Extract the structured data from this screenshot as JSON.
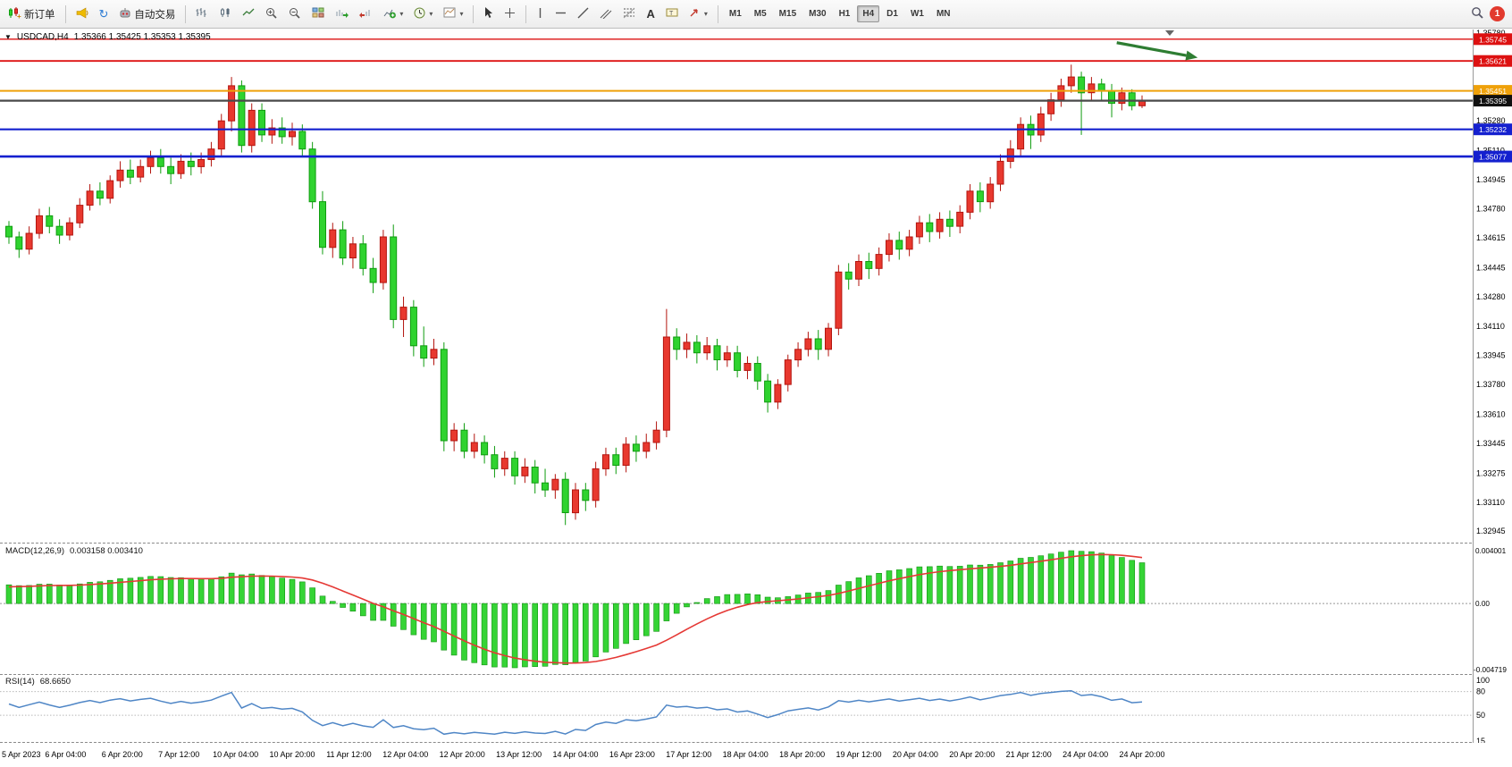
{
  "toolbar": {
    "new_order_label": "新订单",
    "auto_trading_label": "自动交易",
    "timeframes": [
      "M1",
      "M5",
      "M15",
      "M30",
      "H1",
      "H4",
      "D1",
      "W1",
      "MN"
    ],
    "active_timeframe": "H4",
    "notification_count": "1"
  },
  "chart": {
    "symbol_period": "USDCAD,H4",
    "ohlc": "1.35366 1.35425 1.35353 1.35395"
  },
  "macd": {
    "name": "MACD(12,26,9)",
    "values": "0.003158 0.003410",
    "axis": [
      "0.004001",
      "0.00",
      "-0.004719"
    ]
  },
  "rsi": {
    "name": "RSI(14)",
    "value": "68.6650",
    "axis_labels": [
      "100",
      "80",
      "50",
      "15"
    ],
    "axis_values": [
      100,
      80,
      50,
      15
    ],
    "levels": [
      80,
      50
    ]
  },
  "chart_data": {
    "type": "candlestick",
    "symbol": "USDCAD",
    "timeframe": "H4",
    "title": "USDCAD,H4 1.35366 1.35425 1.35353 1.35395",
    "colors": {
      "up": "#e8382e",
      "up_edge": "#b3150f",
      "down": "#2fd32f",
      "down_edge": "#0f9c0f",
      "macd_bar": "#35d435",
      "macd_bar_edge": "#129212",
      "macd_signal": "#e53935",
      "rsi_line": "#4f86c6"
    },
    "price_axis": {
      "min": 1.3288,
      "max": 1.358,
      "ticks": [
        "1.35780",
        "1.35610",
        "1.35445",
        "1.35280",
        "1.35110",
        "1.34945",
        "1.34780",
        "1.34615",
        "1.34445",
        "1.34280",
        "1.34110",
        "1.33945",
        "1.33780",
        "1.33610",
        "1.33445",
        "1.33275",
        "1.33110",
        "1.32945"
      ]
    },
    "hlines": [
      {
        "price": 1.35745,
        "label": "1.35745",
        "color": "#dd1111",
        "width": 1.4
      },
      {
        "price": 1.35621,
        "label": "1.35621",
        "color": "#dd1111",
        "width": 1.8
      },
      {
        "price": 1.35451,
        "label": "1.35451",
        "color": "#efa10a",
        "width": 2
      },
      {
        "price": 1.35395,
        "label": "1.35395",
        "color": "#4a4a4a",
        "width": 2.2,
        "badge": "#101010"
      },
      {
        "price": 1.35232,
        "label": "1.35232",
        "color": "#1420cf",
        "width": 2.2
      },
      {
        "price": 1.35077,
        "label": "1.35077",
        "color": "#1420cf",
        "width": 2.6
      }
    ],
    "arrow": {
      "bar1": 109.5,
      "price1": 1.35725,
      "bar2": 117.5,
      "price2": 1.3564,
      "color": "#2e7d32"
    },
    "time_axis": [
      "5 Apr 2023",
      "6 Apr 04:00",
      "6 Apr 20:00",
      "7 Apr 12:00",
      "10 Apr 04:00",
      "10 Apr 20:00",
      "11 Apr 12:00",
      "12 Apr 04:00",
      "12 Apr 20:00",
      "13 Apr 12:00",
      "14 Apr 04:00",
      "16 Apr 23:00",
      "17 Apr 12:00",
      "18 Apr 04:00",
      "18 Apr 20:00",
      "19 Apr 12:00",
      "20 Apr 04:00",
      "20 Apr 20:00",
      "21 Apr 12:00",
      "24 Apr 04:00",
      "24 Apr 20:00"
    ],
    "candles": [
      [
        1.3468,
        1.3471,
        1.3458,
        1.3462
      ],
      [
        1.3462,
        1.3465,
        1.345,
        1.3455
      ],
      [
        1.3455,
        1.3468,
        1.3452,
        1.3464
      ],
      [
        1.3464,
        1.3478,
        1.3461,
        1.3474
      ],
      [
        1.3474,
        1.3479,
        1.3464,
        1.3468
      ],
      [
        1.3468,
        1.3472,
        1.3458,
        1.3463
      ],
      [
        1.3463,
        1.3473,
        1.346,
        1.347
      ],
      [
        1.347,
        1.3484,
        1.3467,
        1.348
      ],
      [
        1.348,
        1.3492,
        1.3477,
        1.3488
      ],
      [
        1.3488,
        1.3493,
        1.348,
        1.3484
      ],
      [
        1.3484,
        1.3497,
        1.3481,
        1.3494
      ],
      [
        1.3494,
        1.3505,
        1.349,
        1.35
      ],
      [
        1.35,
        1.3506,
        1.3492,
        1.3496
      ],
      [
        1.3496,
        1.3506,
        1.3493,
        1.3502
      ],
      [
        1.3502,
        1.3511,
        1.3498,
        1.3507
      ],
      [
        1.3507,
        1.3512,
        1.3498,
        1.3502
      ],
      [
        1.3502,
        1.3507,
        1.3492,
        1.3498
      ],
      [
        1.3498,
        1.3509,
        1.3495,
        1.3505
      ],
      [
        1.3505,
        1.351,
        1.3497,
        1.3502
      ],
      [
        1.3502,
        1.351,
        1.3498,
        1.3506
      ],
      [
        1.3506,
        1.3516,
        1.3502,
        1.3512
      ],
      [
        1.3512,
        1.3532,
        1.3508,
        1.3528
      ],
      [
        1.3528,
        1.3553,
        1.3522,
        1.3548
      ],
      [
        1.3548,
        1.3551,
        1.351,
        1.3514
      ],
      [
        1.3514,
        1.3538,
        1.351,
        1.3534
      ],
      [
        1.3534,
        1.3538,
        1.3516,
        1.352
      ],
      [
        1.352,
        1.3529,
        1.3515,
        1.3524
      ],
      [
        1.3524,
        1.353,
        1.3515,
        1.3519
      ],
      [
        1.3519,
        1.3527,
        1.3514,
        1.3522
      ],
      [
        1.3522,
        1.3526,
        1.3508,
        1.3512
      ],
      [
        1.3512,
        1.3516,
        1.3478,
        1.3482
      ],
      [
        1.3482,
        1.3488,
        1.3452,
        1.3456
      ],
      [
        1.3456,
        1.347,
        1.345,
        1.3466
      ],
      [
        1.3466,
        1.3471,
        1.3446,
        1.345
      ],
      [
        1.345,
        1.3462,
        1.3444,
        1.3458
      ],
      [
        1.3458,
        1.3463,
        1.344,
        1.3444
      ],
      [
        1.3444,
        1.345,
        1.343,
        1.3436
      ],
      [
        1.3436,
        1.3466,
        1.3432,
        1.3462
      ],
      [
        1.3462,
        1.3469,
        1.341,
        1.3415
      ],
      [
        1.3415,
        1.3428,
        1.3405,
        1.3422
      ],
      [
        1.3422,
        1.3426,
        1.3394,
        1.34
      ],
      [
        1.34,
        1.3411,
        1.3388,
        1.3393
      ],
      [
        1.3393,
        1.3404,
        1.3389,
        1.3398
      ],
      [
        1.3398,
        1.3402,
        1.334,
        1.3346
      ],
      [
        1.3346,
        1.3356,
        1.334,
        1.3352
      ],
      [
        1.3352,
        1.3356,
        1.3336,
        1.334
      ],
      [
        1.334,
        1.335,
        1.3336,
        1.3345
      ],
      [
        1.3345,
        1.3349,
        1.3333,
        1.3338
      ],
      [
        1.3338,
        1.3343,
        1.3325,
        1.333
      ],
      [
        1.333,
        1.334,
        1.3326,
        1.3336
      ],
      [
        1.3336,
        1.334,
        1.3321,
        1.3326
      ],
      [
        1.3326,
        1.3336,
        1.3322,
        1.3331
      ],
      [
        1.3331,
        1.3335,
        1.3316,
        1.3322
      ],
      [
        1.3322,
        1.333,
        1.3314,
        1.3318
      ],
      [
        1.3318,
        1.3327,
        1.3313,
        1.3324
      ],
      [
        1.3324,
        1.3328,
        1.3298,
        1.3305
      ],
      [
        1.3305,
        1.3322,
        1.3301,
        1.3318
      ],
      [
        1.3318,
        1.3322,
        1.3306,
        1.3312
      ],
      [
        1.3312,
        1.3334,
        1.3308,
        1.333
      ],
      [
        1.333,
        1.3342,
        1.3326,
        1.3338
      ],
      [
        1.3338,
        1.3342,
        1.3327,
        1.3332
      ],
      [
        1.3332,
        1.3348,
        1.3328,
        1.3344
      ],
      [
        1.3344,
        1.3349,
        1.3334,
        1.334
      ],
      [
        1.334,
        1.335,
        1.3336,
        1.3345
      ],
      [
        1.3345,
        1.3357,
        1.3341,
        1.3352
      ],
      [
        1.3352,
        1.3421,
        1.3348,
        1.3405
      ],
      [
        1.3405,
        1.341,
        1.3392,
        1.3398
      ],
      [
        1.3398,
        1.3407,
        1.3393,
        1.3402
      ],
      [
        1.3402,
        1.3406,
        1.339,
        1.3396
      ],
      [
        1.3396,
        1.3405,
        1.3392,
        1.34
      ],
      [
        1.34,
        1.3404,
        1.3386,
        1.3392
      ],
      [
        1.3392,
        1.34,
        1.3388,
        1.3396
      ],
      [
        1.3396,
        1.34,
        1.3382,
        1.3386
      ],
      [
        1.3386,
        1.3394,
        1.3381,
        1.339
      ],
      [
        1.339,
        1.3394,
        1.3375,
        1.338
      ],
      [
        1.338,
        1.3384,
        1.3362,
        1.3368
      ],
      [
        1.3368,
        1.3381,
        1.3364,
        1.3378
      ],
      [
        1.3378,
        1.3395,
        1.3374,
        1.3392
      ],
      [
        1.3392,
        1.3402,
        1.3388,
        1.3398
      ],
      [
        1.3398,
        1.3408,
        1.3394,
        1.3404
      ],
      [
        1.3404,
        1.3409,
        1.3392,
        1.3398
      ],
      [
        1.3398,
        1.3413,
        1.3394,
        1.341
      ],
      [
        1.341,
        1.3446,
        1.3406,
        1.3442
      ],
      [
        1.3442,
        1.3447,
        1.3432,
        1.3438
      ],
      [
        1.3438,
        1.3452,
        1.3434,
        1.3448
      ],
      [
        1.3448,
        1.3453,
        1.3438,
        1.3444
      ],
      [
        1.3444,
        1.3456,
        1.344,
        1.3452
      ],
      [
        1.3452,
        1.3464,
        1.3448,
        1.346
      ],
      [
        1.346,
        1.3465,
        1.3449,
        1.3455
      ],
      [
        1.3455,
        1.3466,
        1.3451,
        1.3462
      ],
      [
        1.3462,
        1.3474,
        1.3458,
        1.347
      ],
      [
        1.347,
        1.3475,
        1.3459,
        1.3465
      ],
      [
        1.3465,
        1.3476,
        1.3461,
        1.3472
      ],
      [
        1.3472,
        1.3477,
        1.3462,
        1.3468
      ],
      [
        1.3468,
        1.348,
        1.3464,
        1.3476
      ],
      [
        1.3476,
        1.3492,
        1.3472,
        1.3488
      ],
      [
        1.3488,
        1.3493,
        1.3476,
        1.3482
      ],
      [
        1.3482,
        1.3496,
        1.3478,
        1.3492
      ],
      [
        1.3492,
        1.3509,
        1.3488,
        1.3505
      ],
      [
        1.3505,
        1.3517,
        1.3501,
        1.3512
      ],
      [
        1.3512,
        1.353,
        1.3508,
        1.3526
      ],
      [
        1.3526,
        1.3531,
        1.3512,
        1.352
      ],
      [
        1.352,
        1.3536,
        1.3516,
        1.3532
      ],
      [
        1.3532,
        1.3544,
        1.3528,
        1.354
      ],
      [
        1.354,
        1.3552,
        1.3536,
        1.3548
      ],
      [
        1.3548,
        1.356,
        1.3544,
        1.3553
      ],
      [
        1.3553,
        1.3556,
        1.352,
        1.3544
      ],
      [
        1.3544,
        1.3553,
        1.354,
        1.3549
      ],
      [
        1.3549,
        1.3552,
        1.354,
        1.3545
      ],
      [
        1.3545,
        1.3549,
        1.353,
        1.3538
      ],
      [
        1.3538,
        1.3547,
        1.3534,
        1.3544
      ],
      [
        1.3544,
        1.3546,
        1.3534,
        1.35366
      ],
      [
        1.35366,
        1.35425,
        1.35353,
        1.35395
      ]
    ]
  }
}
